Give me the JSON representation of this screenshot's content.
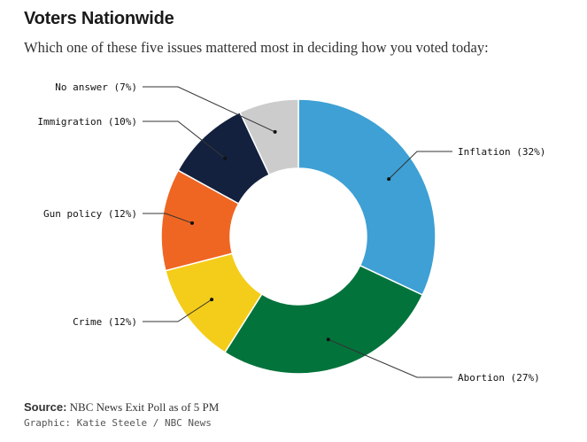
{
  "header": {
    "title": "Voters Nationwide",
    "subtitle": "Which one of these five issues mattered most in deciding how you voted today:"
  },
  "footer": {
    "source_label": "Source:",
    "source_text": "NBC News Exit Poll as of 5 PM",
    "credit": "Graphic: Katie Steele / NBC News"
  },
  "chart_data": {
    "type": "pie",
    "variant": "donut",
    "title": "Voters Nationwide",
    "subtitle": "Which one of these five issues mattered most in deciding how you voted today:",
    "slices": [
      {
        "name": "Inflation",
        "value": 32,
        "label": "Inflation (32%)",
        "color": "#3ea0d4"
      },
      {
        "name": "Abortion",
        "value": 27,
        "label": "Abortion (27%)",
        "color": "#03733c"
      },
      {
        "name": "Crime",
        "value": 12,
        "label": "Crime (12%)",
        "color": "#f4cd1a"
      },
      {
        "name": "Gun policy",
        "value": 12,
        "label": "Gun policy (12%)",
        "color": "#ef6623"
      },
      {
        "name": "Immigration",
        "value": 10,
        "label": "Immigration (10%)",
        "color": "#13213f"
      },
      {
        "name": "No answer",
        "value": 7,
        "label": "No answer (7%)",
        "color": "#cccccc"
      }
    ]
  }
}
